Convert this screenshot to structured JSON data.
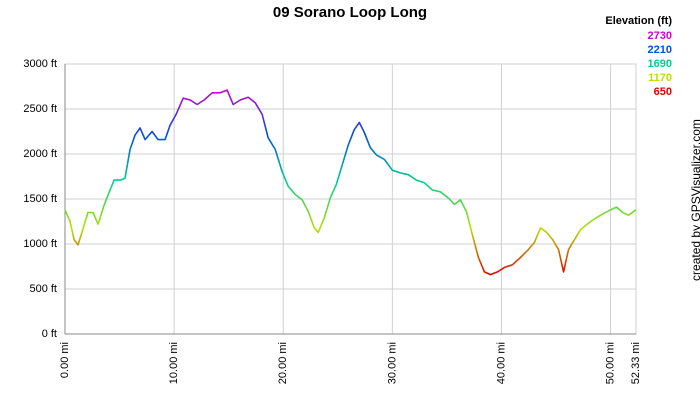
{
  "chart_data": {
    "type": "line",
    "title": "09 Sorano Loop Long",
    "legend_title": "Elevation (ft)",
    "color_scale": [
      {
        "value": 2730,
        "color": "#d000d0"
      },
      {
        "value": 2210,
        "color": "#0050e0"
      },
      {
        "value": 1690,
        "color": "#00d090"
      },
      {
        "value": 1170,
        "color": "#b8e000"
      },
      {
        "value": 650,
        "color": "#e00000"
      }
    ],
    "credit": "created by GPSVisualizer.com",
    "xlim": [
      0,
      52.33
    ],
    "xticks": [
      {
        "value": 0,
        "label": "0.00 mi"
      },
      {
        "value": 10,
        "label": "10.00 mi"
      },
      {
        "value": 20,
        "label": "20.00 mi"
      },
      {
        "value": 30,
        "label": "30.00 mi"
      },
      {
        "value": 40,
        "label": "40.00 mi"
      },
      {
        "value": 50,
        "label": "50.00 mi"
      },
      {
        "value": 52.33,
        "label": "52.33 mi"
      }
    ],
    "ylim": [
      0,
      3000
    ],
    "yticks": [
      {
        "value": 0,
        "label": "0 ft"
      },
      {
        "value": 500,
        "label": "500 ft"
      },
      {
        "value": 1000,
        "label": "1000 ft"
      },
      {
        "value": 1500,
        "label": "1500 ft"
      },
      {
        "value": 2000,
        "label": "2000 ft"
      },
      {
        "value": 2500,
        "label": "2500 ft"
      },
      {
        "value": 3000,
        "label": "3000 ft"
      }
    ],
    "grid": true,
    "x": [
      0,
      0.46,
      0.83,
      1.19,
      1.56,
      2.1,
      2.57,
      3.03,
      3.58,
      4.13,
      4.5,
      5.05,
      5.5,
      5.96,
      6.42,
      6.88,
      7.34,
      7.98,
      8.53,
      9.17,
      9.63,
      10.18,
      10.83,
      11.47,
      12.11,
      12.75,
      13.49,
      14.22,
      14.86,
      15.41,
      16.06,
      16.79,
      17.43,
      18.07,
      18.62,
      19.27,
      19.91,
      20.46,
      21.1,
      21.74,
      22.3,
      22.84,
      23.21,
      23.76,
      24.31,
      24.86,
      25.41,
      25.96,
      26.51,
      26.97,
      27.43,
      27.98,
      28.53,
      29.27,
      30.0,
      30.73,
      31.47,
      32.2,
      32.94,
      33.67,
      34.4,
      35.14,
      35.69,
      36.24,
      36.79,
      37.34,
      37.89,
      38.44,
      38.99,
      39.63,
      40.28,
      41.01,
      41.74,
      42.48,
      43.03,
      43.58,
      44.13,
      44.68,
      45.23,
      45.69,
      46.15,
      46.7,
      47.25,
      48.17,
      49.08,
      50.0,
      50.55,
      51.1,
      51.65,
      52.33
    ],
    "values": [
      1380,
      1250,
      1050,
      990,
      1130,
      1350,
      1350,
      1220,
      1430,
      1600,
      1710,
      1710,
      1730,
      2050,
      2210,
      2290,
      2160,
      2250,
      2160,
      2160,
      2320,
      2440,
      2620,
      2600,
      2550,
      2600,
      2680,
      2680,
      2710,
      2550,
      2600,
      2630,
      2570,
      2440,
      2180,
      2050,
      1800,
      1640,
      1550,
      1490,
      1360,
      1180,
      1130,
      1290,
      1510,
      1660,
      1880,
      2100,
      2270,
      2350,
      2240,
      2070,
      1990,
      1940,
      1820,
      1790,
      1770,
      1710,
      1680,
      1600,
      1580,
      1510,
      1440,
      1490,
      1360,
      1100,
      850,
      690,
      660,
      690,
      740,
      770,
      850,
      940,
      1020,
      1180,
      1130,
      1050,
      940,
      690,
      940,
      1050,
      1160,
      1250,
      1320,
      1380,
      1410,
      1350,
      1320,
      1380
    ]
  }
}
